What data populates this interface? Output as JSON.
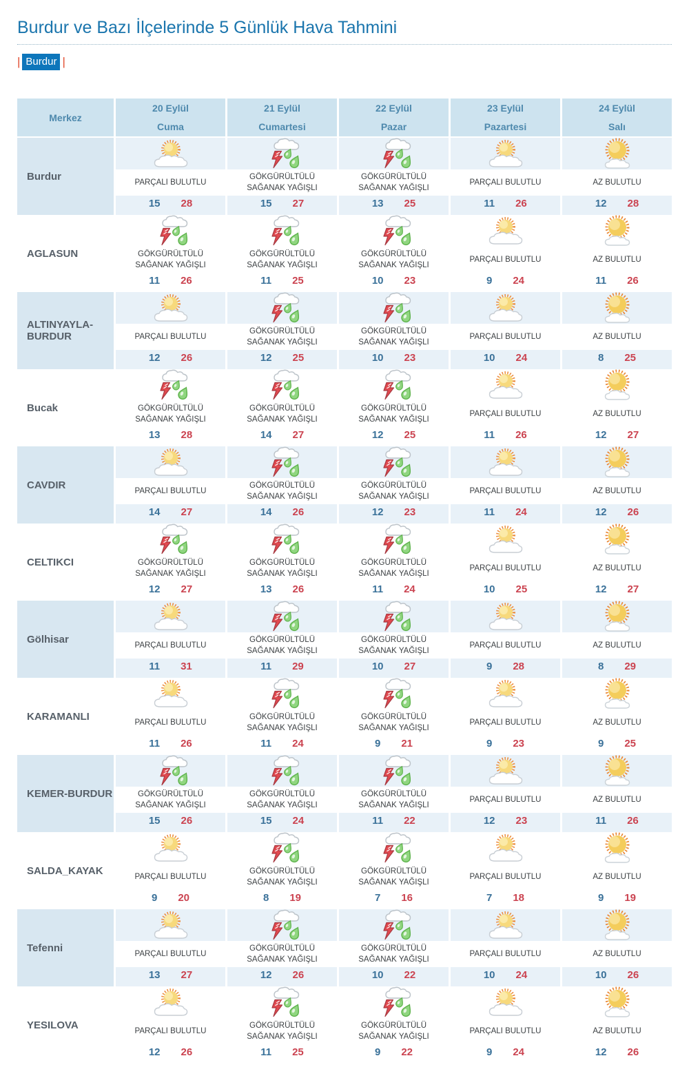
{
  "page": {
    "title": "Burdur ve Bazı İlçelerinde 5 Günlük Hava Tahmini",
    "tab": "Burdur",
    "tab_bar": "|"
  },
  "colors": {
    "title_blue": "#1a75ad",
    "tab_background": "#0d76bb",
    "tab_bar_red": "#e2492e",
    "header_background": "#cde3ef",
    "row_light_background": "#e8f1f8",
    "merkez_light_background": "#d8e7f1",
    "min_temp_blue": "#3a7199",
    "max_temp_red": "#cb4350"
  },
  "table": {
    "corner_label": "Merkez",
    "days": [
      {
        "date": "20 Eylül",
        "day": "Cuma"
      },
      {
        "date": "21 Eylül",
        "day": "Cumartesi"
      },
      {
        "date": "22 Eylül",
        "day": "Pazar"
      },
      {
        "date": "23 Eylül",
        "day": "Pazartesi"
      },
      {
        "date": "24 Eylül",
        "day": "Salı"
      }
    ],
    "rows": [
      {
        "name": "Burdur",
        "cells": [
          {
            "icon": "parcali-bulutlu",
            "desc": "PARÇALI BULUTLU",
            "min": "15",
            "max": "28"
          },
          {
            "icon": "gokgurultulu-saganak-yagisli",
            "desc": "GÖKGÜRÜLTÜLÜ SAĞANAK YAĞIŞLI",
            "min": "15",
            "max": "27"
          },
          {
            "icon": "gokgurultulu-saganak-yagisli",
            "desc": "GÖKGÜRÜLTÜLÜ SAĞANAK YAĞIŞLI",
            "min": "13",
            "max": "25"
          },
          {
            "icon": "parcali-bulutlu",
            "desc": "PARÇALI BULUTLU",
            "min": "11",
            "max": "26"
          },
          {
            "icon": "az-bulutlu",
            "desc": "AZ BULUTLU",
            "min": "12",
            "max": "28"
          }
        ]
      },
      {
        "name": "AGLASUN",
        "cells": [
          {
            "icon": "gokgurultulu-saganak-yagisli",
            "desc": "GÖKGÜRÜLTÜLÜ SAĞANAK YAĞIŞLI",
            "min": "11",
            "max": "26"
          },
          {
            "icon": "gokgurultulu-saganak-yagisli",
            "desc": "GÖKGÜRÜLTÜLÜ SAĞANAK YAĞIŞLI",
            "min": "11",
            "max": "25"
          },
          {
            "icon": "gokgurultulu-saganak-yagisli",
            "desc": "GÖKGÜRÜLTÜLÜ SAĞANAK YAĞIŞLI",
            "min": "10",
            "max": "23"
          },
          {
            "icon": "parcali-bulutlu",
            "desc": "PARÇALI BULUTLU",
            "min": "9",
            "max": "24"
          },
          {
            "icon": "az-bulutlu",
            "desc": "AZ BULUTLU",
            "min": "11",
            "max": "26"
          }
        ]
      },
      {
        "name": "ALTINYAYLA-BURDUR",
        "cells": [
          {
            "icon": "parcali-bulutlu",
            "desc": "PARÇALI BULUTLU",
            "min": "12",
            "max": "26"
          },
          {
            "icon": "gokgurultulu-saganak-yagisli",
            "desc": "GÖKGÜRÜLTÜLÜ SAĞANAK YAĞIŞLI",
            "min": "12",
            "max": "25"
          },
          {
            "icon": "gokgurultulu-saganak-yagisli",
            "desc": "GÖKGÜRÜLTÜLÜ SAĞANAK YAĞIŞLI",
            "min": "10",
            "max": "23"
          },
          {
            "icon": "parcali-bulutlu",
            "desc": "PARÇALI BULUTLU",
            "min": "10",
            "max": "24"
          },
          {
            "icon": "az-bulutlu",
            "desc": "AZ BULUTLU",
            "min": "8",
            "max": "25"
          }
        ]
      },
      {
        "name": "Bucak",
        "cells": [
          {
            "icon": "gokgurultulu-saganak-yagisli",
            "desc": "GÖKGÜRÜLTÜLÜ SAĞANAK YAĞIŞLI",
            "min": "13",
            "max": "28"
          },
          {
            "icon": "gokgurultulu-saganak-yagisli",
            "desc": "GÖKGÜRÜLTÜLÜ SAĞANAK YAĞIŞLI",
            "min": "14",
            "max": "27"
          },
          {
            "icon": "gokgurultulu-saganak-yagisli",
            "desc": "GÖKGÜRÜLTÜLÜ SAĞANAK YAĞIŞLI",
            "min": "12",
            "max": "25"
          },
          {
            "icon": "parcali-bulutlu",
            "desc": "PARÇALI BULUTLU",
            "min": "11",
            "max": "26"
          },
          {
            "icon": "az-bulutlu",
            "desc": "AZ BULUTLU",
            "min": "12",
            "max": "27"
          }
        ]
      },
      {
        "name": "CAVDIR",
        "cells": [
          {
            "icon": "parcali-bulutlu",
            "desc": "PARÇALI BULUTLU",
            "min": "14",
            "max": "27"
          },
          {
            "icon": "gokgurultulu-saganak-yagisli",
            "desc": "GÖKGÜRÜLTÜLÜ SAĞANAK YAĞIŞLI",
            "min": "14",
            "max": "26"
          },
          {
            "icon": "gokgurultulu-saganak-yagisli",
            "desc": "GÖKGÜRÜLTÜLÜ SAĞANAK YAĞIŞLI",
            "min": "12",
            "max": "23"
          },
          {
            "icon": "parcali-bulutlu",
            "desc": "PARÇALI BULUTLU",
            "min": "11",
            "max": "24"
          },
          {
            "icon": "az-bulutlu",
            "desc": "AZ BULUTLU",
            "min": "12",
            "max": "26"
          }
        ]
      },
      {
        "name": "CELTIKCI",
        "cells": [
          {
            "icon": "gokgurultulu-saganak-yagisli",
            "desc": "GÖKGÜRÜLTÜLÜ SAĞANAK YAĞIŞLI",
            "min": "12",
            "max": "27"
          },
          {
            "icon": "gokgurultulu-saganak-yagisli",
            "desc": "GÖKGÜRÜLTÜLÜ SAĞANAK YAĞIŞLI",
            "min": "13",
            "max": "26"
          },
          {
            "icon": "gokgurultulu-saganak-yagisli",
            "desc": "GÖKGÜRÜLTÜLÜ SAĞANAK YAĞIŞLI",
            "min": "11",
            "max": "24"
          },
          {
            "icon": "parcali-bulutlu",
            "desc": "PARÇALI BULUTLU",
            "min": "10",
            "max": "25"
          },
          {
            "icon": "az-bulutlu",
            "desc": "AZ BULUTLU",
            "min": "12",
            "max": "27"
          }
        ]
      },
      {
        "name": "Gölhisar",
        "cells": [
          {
            "icon": "parcali-bulutlu",
            "desc": "PARÇALI BULUTLU",
            "min": "11",
            "max": "31"
          },
          {
            "icon": "gokgurultulu-saganak-yagisli",
            "desc": "GÖKGÜRÜLTÜLÜ SAĞANAK YAĞIŞLI",
            "min": "11",
            "max": "29"
          },
          {
            "icon": "gokgurultulu-saganak-yagisli",
            "desc": "GÖKGÜRÜLTÜLÜ SAĞANAK YAĞIŞLI",
            "min": "10",
            "max": "27"
          },
          {
            "icon": "parcali-bulutlu",
            "desc": "PARÇALI BULUTLU",
            "min": "9",
            "max": "28"
          },
          {
            "icon": "az-bulutlu",
            "desc": "AZ BULUTLU",
            "min": "8",
            "max": "29"
          }
        ]
      },
      {
        "name": "KARAMANLI",
        "cells": [
          {
            "icon": "parcali-bulutlu",
            "desc": "PARÇALI BULUTLU",
            "min": "11",
            "max": "26"
          },
          {
            "icon": "gokgurultulu-saganak-yagisli",
            "desc": "GÖKGÜRÜLTÜLÜ SAĞANAK YAĞIŞLI",
            "min": "11",
            "max": "24"
          },
          {
            "icon": "gokgurultulu-saganak-yagisli",
            "desc": "GÖKGÜRÜLTÜLÜ SAĞANAK YAĞIŞLI",
            "min": "9",
            "max": "21"
          },
          {
            "icon": "parcali-bulutlu",
            "desc": "PARÇALI BULUTLU",
            "min": "9",
            "max": "23"
          },
          {
            "icon": "az-bulutlu",
            "desc": "AZ BULUTLU",
            "min": "9",
            "max": "25"
          }
        ]
      },
      {
        "name": "KEMER-BURDUR",
        "cells": [
          {
            "icon": "gokgurultulu-saganak-yagisli",
            "desc": "GÖKGÜRÜLTÜLÜ SAĞANAK YAĞIŞLI",
            "min": "15",
            "max": "26"
          },
          {
            "icon": "gokgurultulu-saganak-yagisli",
            "desc": "GÖKGÜRÜLTÜLÜ SAĞANAK YAĞIŞLI",
            "min": "15",
            "max": "24"
          },
          {
            "icon": "gokgurultulu-saganak-yagisli",
            "desc": "GÖKGÜRÜLTÜLÜ SAĞANAK YAĞIŞLI",
            "min": "11",
            "max": "22"
          },
          {
            "icon": "parcali-bulutlu",
            "desc": "PARÇALI BULUTLU",
            "min": "12",
            "max": "23"
          },
          {
            "icon": "az-bulutlu",
            "desc": "AZ BULUTLU",
            "min": "11",
            "max": "26"
          }
        ]
      },
      {
        "name": "SALDA_KAYAK",
        "cells": [
          {
            "icon": "parcali-bulutlu",
            "desc": "PARÇALI BULUTLU",
            "min": "9",
            "max": "20"
          },
          {
            "icon": "gokgurultulu-saganak-yagisli",
            "desc": "GÖKGÜRÜLTÜLÜ SAĞANAK YAĞIŞLI",
            "min": "8",
            "max": "19"
          },
          {
            "icon": "gokgurultulu-saganak-yagisli",
            "desc": "GÖKGÜRÜLTÜLÜ SAĞANAK YAĞIŞLI",
            "min": "7",
            "max": "16"
          },
          {
            "icon": "parcali-bulutlu",
            "desc": "PARÇALI BULUTLU",
            "min": "7",
            "max": "18"
          },
          {
            "icon": "az-bulutlu",
            "desc": "AZ BULUTLU",
            "min": "9",
            "max": "19"
          }
        ]
      },
      {
        "name": "Tefenni",
        "cells": [
          {
            "icon": "parcali-bulutlu",
            "desc": "PARÇALI BULUTLU",
            "min": "13",
            "max": "27"
          },
          {
            "icon": "gokgurultulu-saganak-yagisli",
            "desc": "GÖKGÜRÜLTÜLÜ SAĞANAK YAĞIŞLI",
            "min": "12",
            "max": "26"
          },
          {
            "icon": "gokgurultulu-saganak-yagisli",
            "desc": "GÖKGÜRÜLTÜLÜ SAĞANAK YAĞIŞLI",
            "min": "10",
            "max": "22"
          },
          {
            "icon": "parcali-bulutlu",
            "desc": "PARÇALI BULUTLU",
            "min": "10",
            "max": "24"
          },
          {
            "icon": "az-bulutlu",
            "desc": "AZ BULUTLU",
            "min": "10",
            "max": "26"
          }
        ]
      },
      {
        "name": "YESILOVA",
        "cells": [
          {
            "icon": "parcali-bulutlu",
            "desc": "PARÇALI BULUTLU",
            "min": "12",
            "max": "26"
          },
          {
            "icon": "gokgurultulu-saganak-yagisli",
            "desc": "GÖKGÜRÜLTÜLÜ SAĞANAK YAĞIŞLI",
            "min": "11",
            "max": "25"
          },
          {
            "icon": "gokgurultulu-saganak-yagisli",
            "desc": "GÖKGÜRÜLTÜLÜ SAĞANAK YAĞIŞLI",
            "min": "9",
            "max": "22"
          },
          {
            "icon": "parcali-bulutlu",
            "desc": "PARÇALI BULUTLU",
            "min": "9",
            "max": "24"
          },
          {
            "icon": "az-bulutlu",
            "desc": "AZ BULUTLU",
            "min": "12",
            "max": "26"
          }
        ]
      }
    ]
  }
}
